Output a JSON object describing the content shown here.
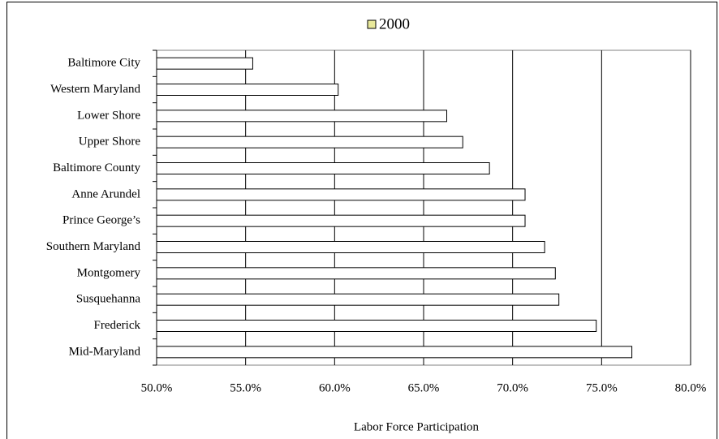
{
  "chart_data": {
    "type": "bar",
    "orientation": "horizontal",
    "x_label": "Labor Force Participation",
    "categories": [
      "Baltimore City",
      "Western Maryland",
      "Lower Shore",
      "Upper Shore",
      "Baltimore County",
      "Anne Arundel",
      "Prince George’s",
      "Southern Maryland",
      "Montgomery",
      "Susquehanna",
      "Frederick",
      "Mid-Maryland"
    ],
    "series": [
      {
        "name": "2000",
        "color": "#ffffff",
        "values": [
          55.4,
          60.2,
          66.3,
          67.2,
          68.7,
          70.7,
          70.7,
          71.8,
          72.4,
          72.6,
          74.7,
          76.7
        ]
      }
    ],
    "xlim": [
      50,
      80
    ],
    "xticks": [
      {
        "value": 50,
        "label": "50.0%"
      },
      {
        "value": 55,
        "label": "55.0%"
      },
      {
        "value": 60,
        "label": "60.0%"
      },
      {
        "value": 65,
        "label": "65.0%"
      },
      {
        "value": 70,
        "label": "70.0%"
      },
      {
        "value": 75,
        "label": "75.0%"
      },
      {
        "value": 80,
        "label": "80.0%"
      }
    ],
    "grid": true,
    "legend": "top"
  }
}
